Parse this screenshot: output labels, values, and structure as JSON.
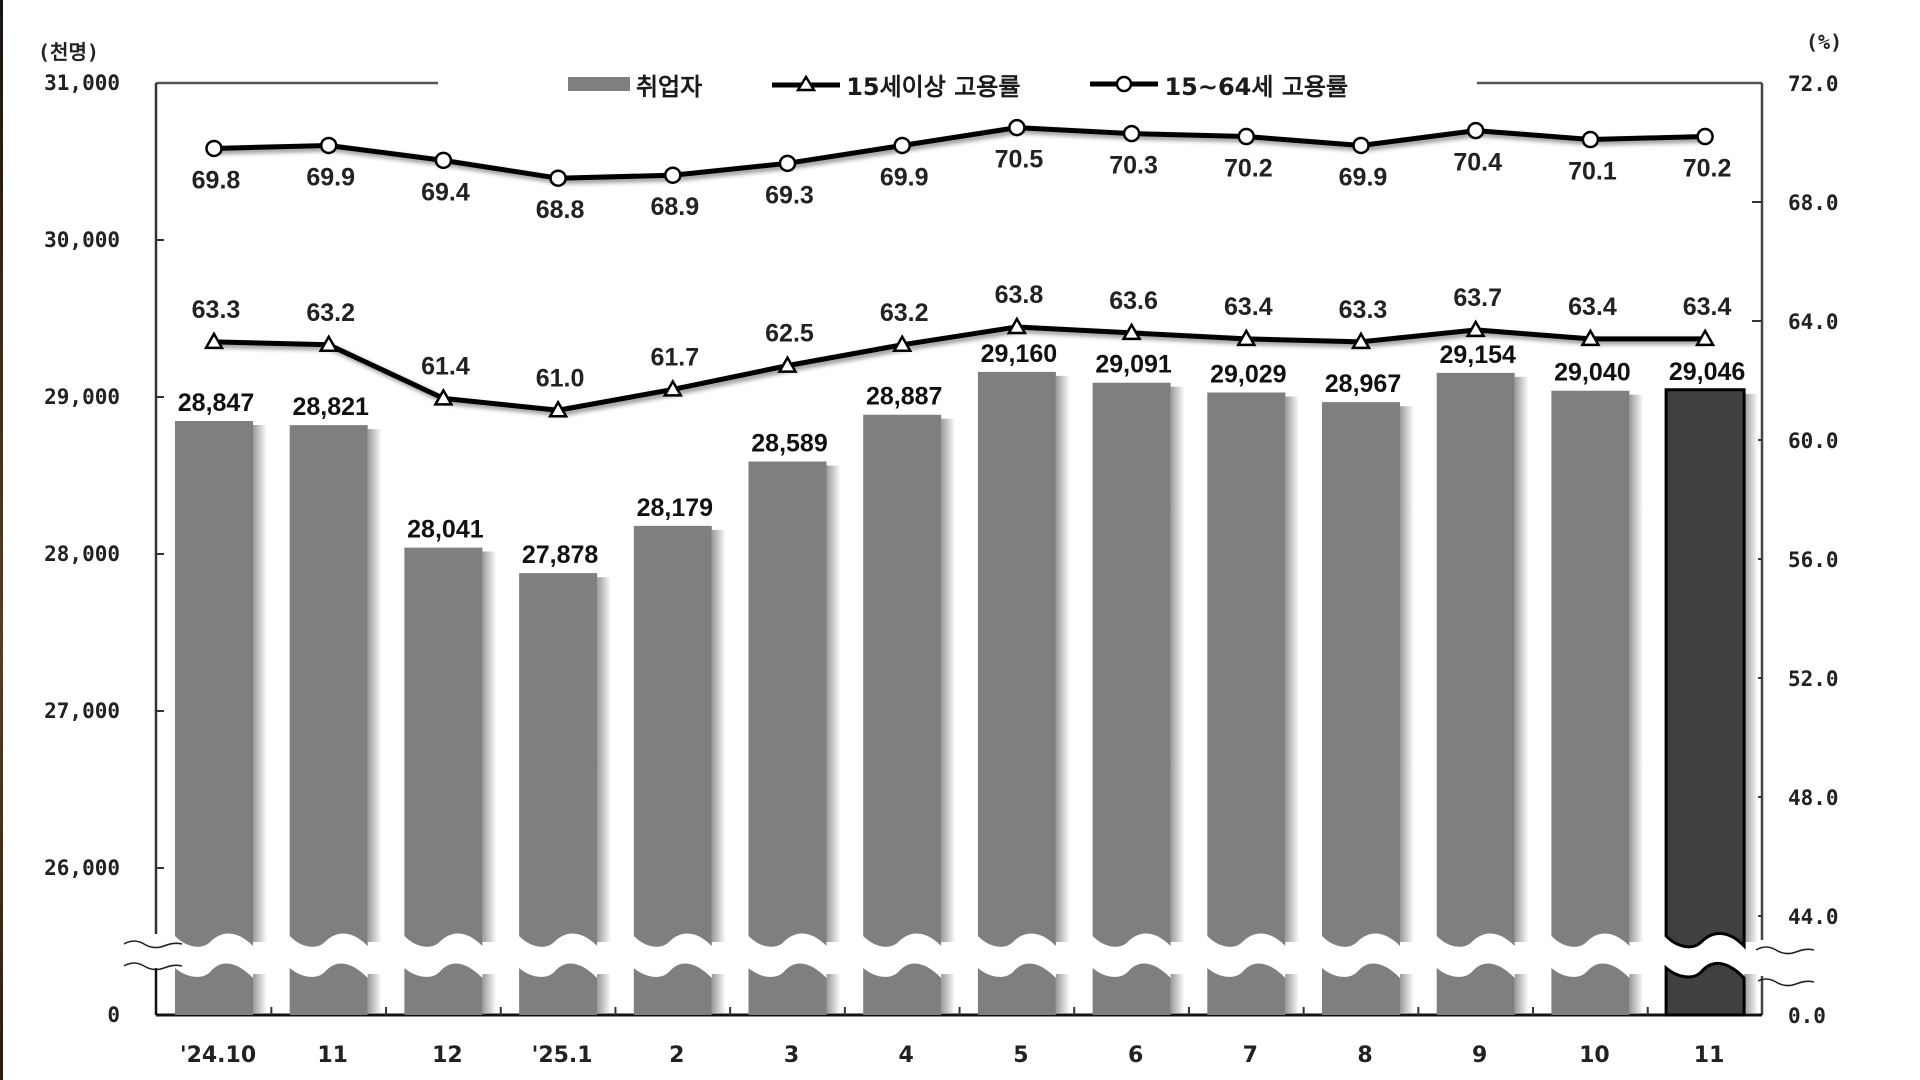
{
  "chart_data": {
    "type": "bar+line",
    "title": "",
    "categories": [
      "'24.10",
      "11",
      "12",
      "'25.1",
      "2",
      "3",
      "4",
      "5",
      "6",
      "7",
      "8",
      "9",
      "10",
      "11"
    ],
    "series": [
      {
        "name": "취업자",
        "type": "bar",
        "axis": "left",
        "values": [
          28847,
          28821,
          28041,
          27878,
          28179,
          28589,
          28887,
          29160,
          29091,
          29029,
          28967,
          29154,
          29040,
          29046
        ],
        "labels": [
          "28,847",
          "28,821",
          "28,041",
          "27,878",
          "28,179",
          "28,589",
          "28,887",
          "29,160",
          "29,091",
          "29,029",
          "28,967",
          "29,154",
          "29,040",
          "29,046"
        ],
        "color": "#7f7f7f",
        "highlight_color": "#404040",
        "highlight_index": 13
      },
      {
        "name": "15세이상 고용률",
        "type": "line",
        "marker": "triangle",
        "axis": "right",
        "values": [
          63.3,
          63.2,
          61.4,
          61.0,
          61.7,
          62.5,
          63.2,
          63.8,
          63.6,
          63.4,
          63.3,
          63.7,
          63.4,
          63.4
        ],
        "color": "#000000"
      },
      {
        "name": "15~64세 고용률",
        "type": "line",
        "marker": "circle",
        "axis": "right",
        "values": [
          69.8,
          69.9,
          69.4,
          68.8,
          68.9,
          69.3,
          69.9,
          70.5,
          70.3,
          70.2,
          69.9,
          70.4,
          70.1,
          70.2
        ],
        "color": "#000000"
      }
    ],
    "ylabel_left": "(천명)",
    "ylabel_right": "(%)",
    "left_axis": {
      "ticks": [
        "31,000",
        "30,000",
        "29,000",
        "28,000",
        "27,000",
        "26,000",
        "0"
      ],
      "tick_values": [
        31000,
        30000,
        29000,
        28000,
        27000,
        26000,
        0
      ],
      "ylim_visible": [
        25600,
        31000
      ],
      "axis_break": true
    },
    "right_axis": {
      "ticks": [
        "72.0",
        "68.0",
        "64.0",
        "60.0",
        "56.0",
        "52.0",
        "48.0",
        "44.0",
        "0.0"
      ],
      "tick_values": [
        72,
        68,
        64,
        60,
        56,
        52,
        48,
        44,
        0
      ],
      "ylim_visible": [
        43.2,
        72
      ],
      "axis_break": true
    },
    "legend_position": "top",
    "grid": false
  },
  "legend": {
    "bar_label": "취업자",
    "line1_label": "15세이상 고용률",
    "line2_label": "15~64세 고용률"
  },
  "axes": {
    "left_unit": "(천명)",
    "right_unit": "(%)"
  }
}
